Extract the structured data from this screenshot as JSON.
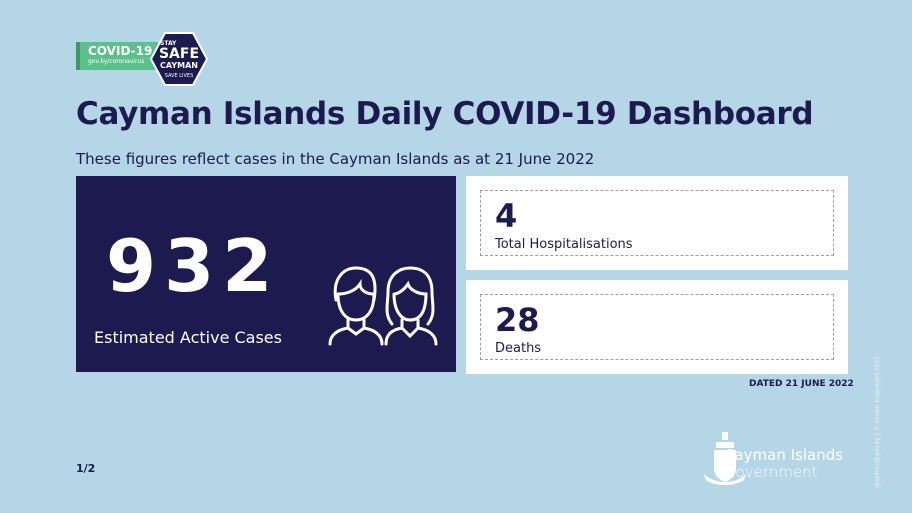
{
  "badge": {
    "title": "COVID-19",
    "url": "gov.ky/coronavirus"
  },
  "logo": {
    "line1": "STAY",
    "line2": "SAFE",
    "line3": "CAYMAN",
    "line4": "SAVE LIVES"
  },
  "title": "Cayman Islands Daily COVID-19 Dashboard",
  "subtitle": "These figures reflect cases in the Cayman Islands as at 21 June 2022",
  "active": {
    "value": "932",
    "label": "Estimated Active Cases"
  },
  "hospitalisations": {
    "value": "4",
    "label": "Total Hospitalisations"
  },
  "deaths": {
    "value": "28",
    "label": "Deaths"
  },
  "dated": "DATED 21 JUNE 2022",
  "page": "1/2",
  "government": {
    "line1": "Cayman Islands",
    "line2": "Government"
  },
  "copyright": "graphics@gov.ky | © Crown Copyright 2021",
  "colors": {
    "background": "#b5d6e6",
    "navy": "#1c1a4e",
    "green": "#5cc08c"
  }
}
